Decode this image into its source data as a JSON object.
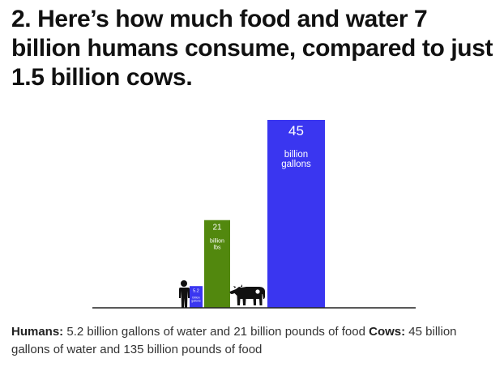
{
  "headline": "2. Here’s how much food and water 7 billion humans consume, compared to just 1.5 billion cows.",
  "chart_data": {
    "type": "bar",
    "title": "",
    "xlabel": "",
    "ylabel": "",
    "ylim": [
      0,
      45
    ],
    "bars": [
      {
        "group": "humans",
        "value": 5.2,
        "label_number": "5.2",
        "label_lines": [
          "billion",
          "gallons"
        ],
        "color": "#3a36f0"
      },
      {
        "group": "humans",
        "value": 21,
        "label_number": "21",
        "label_lines": [
          "billion",
          "lbs"
        ],
        "color": "#52880e"
      },
      {
        "group": "cows",
        "value": 45,
        "label_number": "45",
        "label_lines": [
          "billion",
          "gallons"
        ],
        "color": "#3a36f0"
      }
    ],
    "icons": [
      "human-silhouette-icon",
      "cow-silhouette-icon"
    ]
  },
  "caption": {
    "humans_label": "Humans:",
    "humans_text": " 5.2 billion gallons of water and 21 billion pounds of food ",
    "cows_label": "Cows:",
    "cows_text": " 45 billion gallons of water and 135 billion pounds of food"
  }
}
